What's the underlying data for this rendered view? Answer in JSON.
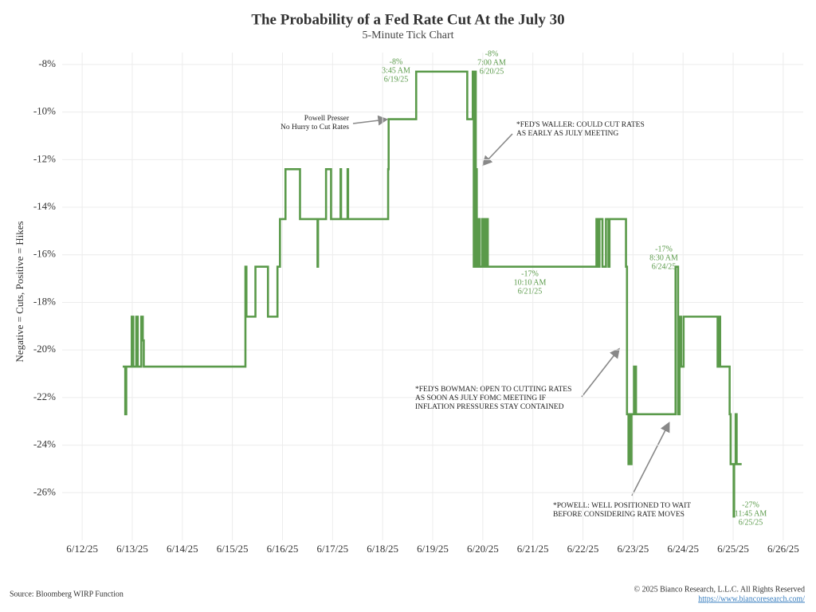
{
  "chart_data": {
    "type": "line",
    "step": "post",
    "title": "The Probability of a Fed Rate Cut At the July 30",
    "subtitle": "5-Minute Tick Chart",
    "y_label": "Negative = Cuts, Positive = Hikes",
    "source": "Source: Bloomberg WIRP Function",
    "copyright": "© 2025 Bianco Research, L.L.C. All Rights Reserved",
    "url": "https://www.biancoresearch.com/",
    "grid": true,
    "xlim": [
      11.6,
      26.4
    ],
    "xticks": [
      {
        "value": 12,
        "label": "6/12/25"
      },
      {
        "value": 13,
        "label": "6/13/25"
      },
      {
        "value": 14,
        "label": "6/14/25"
      },
      {
        "value": 15,
        "label": "6/15/25"
      },
      {
        "value": 16,
        "label": "6/16/25"
      },
      {
        "value": 17,
        "label": "6/17/25"
      },
      {
        "value": 18,
        "label": "6/18/25"
      },
      {
        "value": 19,
        "label": "6/19/25"
      },
      {
        "value": 20,
        "label": "6/20/25"
      },
      {
        "value": 21,
        "label": "6/21/25"
      },
      {
        "value": 22,
        "label": "6/22/25"
      },
      {
        "value": 23,
        "label": "6/23/25"
      },
      {
        "value": 24,
        "label": "6/24/25"
      },
      {
        "value": 25,
        "label": "6/25/25"
      },
      {
        "value": 26,
        "label": "6/26/25"
      }
    ],
    "ylim": [
      -28,
      -7.5
    ],
    "yticks": [
      {
        "value": -8,
        "label": "-8%"
      },
      {
        "value": -10,
        "label": "-10%"
      },
      {
        "value": -12,
        "label": "-12%"
      },
      {
        "value": -14,
        "label": "-14%"
      },
      {
        "value": -16,
        "label": "-16%"
      },
      {
        "value": -18,
        "label": "-18%"
      },
      {
        "value": -20,
        "label": "-20%"
      },
      {
        "value": -22,
        "label": "-22%"
      },
      {
        "value": -24,
        "label": "-24%"
      },
      {
        "value": -26,
        "label": "-26%"
      }
    ],
    "series": [
      {
        "color": "#5a9a4a",
        "x": [
          12.81,
          12.86,
          12.88,
          12.99,
          13.02,
          13.08,
          13.11,
          13.18,
          13.21,
          13.23,
          15.26,
          15.28,
          15.46,
          15.71,
          15.9,
          15.95,
          16.06,
          16.35,
          16.7,
          16.71,
          16.87,
          16.97,
          17.16,
          17.17,
          17.3,
          17.31,
          18.11,
          18.12,
          18.67,
          19.69,
          19.8,
          19.82,
          19.84,
          19.86,
          19.88,
          19.91,
          19.94,
          19.99,
          20.02,
          20.06,
          20.1,
          22.27,
          22.3,
          22.33,
          22.39,
          22.46,
          22.51,
          22.53,
          22.86,
          22.88,
          22.91,
          22.93,
          22.95,
          22.97,
          23.02,
          23.06,
          23.85,
          23.9,
          23.93,
          23.96,
          24.01,
          24.69,
          24.72,
          24.74,
          24.93,
          24.95,
          25.01,
          25.02,
          25.05,
          25.07,
          25.17
        ],
        "values": [
          -20.7,
          -22.7,
          -20.7,
          -18.6,
          -20.7,
          -18.6,
          -20.7,
          -18.6,
          -19.6,
          -20.7,
          -16.5,
          -18.6,
          -16.5,
          -18.6,
          -16.5,
          -14.5,
          -12.4,
          -14.5,
          -16.5,
          -14.5,
          -12.4,
          -14.5,
          -12.4,
          -14.5,
          -12.4,
          -14.5,
          -12.4,
          -10.3,
          -8.3,
          -10.3,
          -8.3,
          -16.5,
          -8.3,
          -12.4,
          -16.5,
          -14.5,
          -16.5,
          -14.5,
          -16.5,
          -14.5,
          -16.5,
          -14.5,
          -16.5,
          -14.5,
          -16.5,
          -14.5,
          -16.5,
          -14.5,
          -16.5,
          -22.7,
          -24.8,
          -22.7,
          -24.8,
          -22.7,
          -20.7,
          -22.7,
          -16.5,
          -22.7,
          -18.6,
          -20.7,
          -18.6,
          -20.7,
          -18.6,
          -20.7,
          -22.7,
          -24.8,
          -27,
          -24.8,
          -22.7,
          -24.8,
          -24.8
        ]
      }
    ],
    "annotations": [
      {
        "lines": [
          "-8%",
          "3:45 AM",
          "6/19/25"
        ]
      },
      {
        "lines": [
          "-8%",
          "7:00 AM",
          "6/20/25"
        ]
      },
      {
        "lines": [
          "Powell Presser",
          "No Hurry to Cut Rates"
        ]
      },
      {
        "lines": [
          "*FED'S WALLER: COULD CUT RATES",
          "AS EARLY AS JULY MEETING"
        ]
      },
      {
        "lines": [
          "-17%",
          "10:10 AM",
          "6/21/25"
        ]
      },
      {
        "lines": [
          "-17%",
          "8:30 AM",
          "6/24/25"
        ]
      },
      {
        "lines": [
          "*FED'S BOWMAN: OPEN TO CUTTING RATES",
          "AS SOON AS JULY FOMC MEETING IF",
          "INFLATION PRESSURES STAY CONTAINED"
        ]
      },
      {
        "lines": [
          "*POWELL: WELL POSITIONED TO WAIT",
          "BEFORE CONSIDERING RATE MOVES"
        ]
      },
      {
        "lines": [
          "-27%",
          "11:45 AM",
          "6/25/25"
        ]
      }
    ]
  }
}
